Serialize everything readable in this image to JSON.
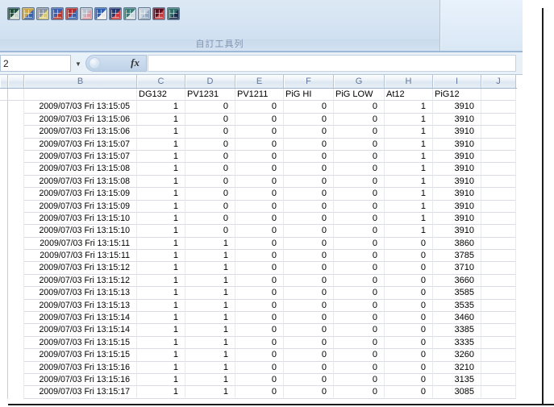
{
  "ribbon": {
    "group_caption": "自訂工具列",
    "toolbar_icons": [
      {
        "name": "new-table-icon",
        "c1": "#1e4d40",
        "c2": "#c9d4cd"
      },
      {
        "name": "open-workbook-icon",
        "c1": "#c9a449",
        "c2": "#3b62a8"
      },
      {
        "name": "print-icon",
        "c1": "#8a93a0",
        "c2": "#d8c87a"
      },
      {
        "name": "sort-data-icon",
        "c1": "#3b5fae",
        "c2": "#b23a2f"
      },
      {
        "name": "save-report-icon",
        "c1": "#b03030",
        "c2": "#3b62a8"
      },
      {
        "name": "chart-wizard-icon",
        "c1": "#b9c2cc",
        "c2": "#d79aa0"
      },
      {
        "name": "sort-number-icon",
        "c1": "#2f5db0",
        "c2": "#e8e8e8"
      },
      {
        "name": "export-grid-icon",
        "c1": "#23366e",
        "c2": "#cf3b3b"
      },
      {
        "name": "table-settings-icon",
        "c1": "#3a7a74",
        "c2": "#cfd7df"
      },
      {
        "name": "grid-light-icon",
        "c1": "#c2cfdc",
        "c2": "#93a8bd"
      },
      {
        "name": "pivot-table-icon",
        "c1": "#5a1020",
        "c2": "#c04040"
      },
      {
        "name": "chart-edit-icon",
        "c1": "#2e6e68",
        "c2": "#1a2a4a"
      }
    ]
  },
  "formula_bar": {
    "name_box_value": "2",
    "fx_label": "fx",
    "formula_value": ""
  },
  "sheet": {
    "column_letters": [
      "B",
      "C",
      "D",
      "E",
      "F",
      "G",
      "H",
      "I",
      "J"
    ],
    "field_headers": [
      "DG132",
      "PV1231",
      "PV1211",
      "PiG HI",
      "PiG LOW",
      "At12",
      "PiG12"
    ],
    "rows": [
      {
        "timestamp": "2009/07/03 Fri 13:15:05",
        "values": [
          1,
          0,
          0,
          0,
          0,
          1,
          3910
        ]
      },
      {
        "timestamp": "2009/07/03 Fri 13:15:06",
        "values": [
          1,
          0,
          0,
          0,
          0,
          1,
          3910
        ]
      },
      {
        "timestamp": "2009/07/03 Fri 13:15:06",
        "values": [
          1,
          0,
          0,
          0,
          0,
          1,
          3910
        ]
      },
      {
        "timestamp": "2009/07/03 Fri 13:15:07",
        "values": [
          1,
          0,
          0,
          0,
          0,
          1,
          3910
        ]
      },
      {
        "timestamp": "2009/07/03 Fri 13:15:07",
        "values": [
          1,
          0,
          0,
          0,
          0,
          1,
          3910
        ]
      },
      {
        "timestamp": "2009/07/03 Fri 13:15:08",
        "values": [
          1,
          0,
          0,
          0,
          0,
          1,
          3910
        ]
      },
      {
        "timestamp": "2009/07/03 Fri 13:15:08",
        "values": [
          1,
          0,
          0,
          0,
          0,
          1,
          3910
        ]
      },
      {
        "timestamp": "2009/07/03 Fri 13:15:09",
        "values": [
          1,
          0,
          0,
          0,
          0,
          1,
          3910
        ]
      },
      {
        "timestamp": "2009/07/03 Fri 13:15:09",
        "values": [
          1,
          0,
          0,
          0,
          0,
          1,
          3910
        ]
      },
      {
        "timestamp": "2009/07/03 Fri 13:15:10",
        "values": [
          1,
          0,
          0,
          0,
          0,
          1,
          3910
        ]
      },
      {
        "timestamp": "2009/07/03 Fri 13:15:10",
        "values": [
          1,
          0,
          0,
          0,
          0,
          1,
          3910
        ]
      },
      {
        "timestamp": "2009/07/03 Fri 13:15:11",
        "values": [
          1,
          1,
          0,
          0,
          0,
          0,
          3860
        ]
      },
      {
        "timestamp": "2009/07/03 Fri 13:15:11",
        "values": [
          1,
          1,
          0,
          0,
          0,
          0,
          3785
        ]
      },
      {
        "timestamp": "2009/07/03 Fri 13:15:12",
        "values": [
          1,
          1,
          0,
          0,
          0,
          0,
          3710
        ]
      },
      {
        "timestamp": "2009/07/03 Fri 13:15:12",
        "values": [
          1,
          1,
          0,
          0,
          0,
          0,
          3660
        ]
      },
      {
        "timestamp": "2009/07/03 Fri 13:15:13",
        "values": [
          1,
          1,
          0,
          0,
          0,
          0,
          3585
        ]
      },
      {
        "timestamp": "2009/07/03 Fri 13:15:13",
        "values": [
          1,
          1,
          0,
          0,
          0,
          0,
          3535
        ]
      },
      {
        "timestamp": "2009/07/03 Fri 13:15:14",
        "values": [
          1,
          1,
          0,
          0,
          0,
          0,
          3460
        ]
      },
      {
        "timestamp": "2009/07/03 Fri 13:15:14",
        "values": [
          1,
          1,
          0,
          0,
          0,
          0,
          3385
        ]
      },
      {
        "timestamp": "2009/07/03 Fri 13:15:15",
        "values": [
          1,
          1,
          0,
          0,
          0,
          0,
          3335
        ]
      },
      {
        "timestamp": "2009/07/03 Fri 13:15:15",
        "values": [
          1,
          1,
          0,
          0,
          0,
          0,
          3260
        ]
      },
      {
        "timestamp": "2009/07/03 Fri 13:15:16",
        "values": [
          1,
          1,
          0,
          0,
          0,
          0,
          3210
        ]
      },
      {
        "timestamp": "2009/07/03 Fri 13:15:16",
        "values": [
          1,
          1,
          0,
          0,
          0,
          0,
          3135
        ]
      },
      {
        "timestamp": "2009/07/03 Fri 13:15:17",
        "values": [
          1,
          1,
          0,
          0,
          0,
          0,
          3085
        ]
      }
    ]
  },
  "colors": {
    "ribbon_blue": "#d5e4f3",
    "formula_bar_bg": "#e9f1f8",
    "header_text": "#61769a",
    "grid_line": "#d9dde3",
    "edge_border": "#1c1c1c"
  }
}
